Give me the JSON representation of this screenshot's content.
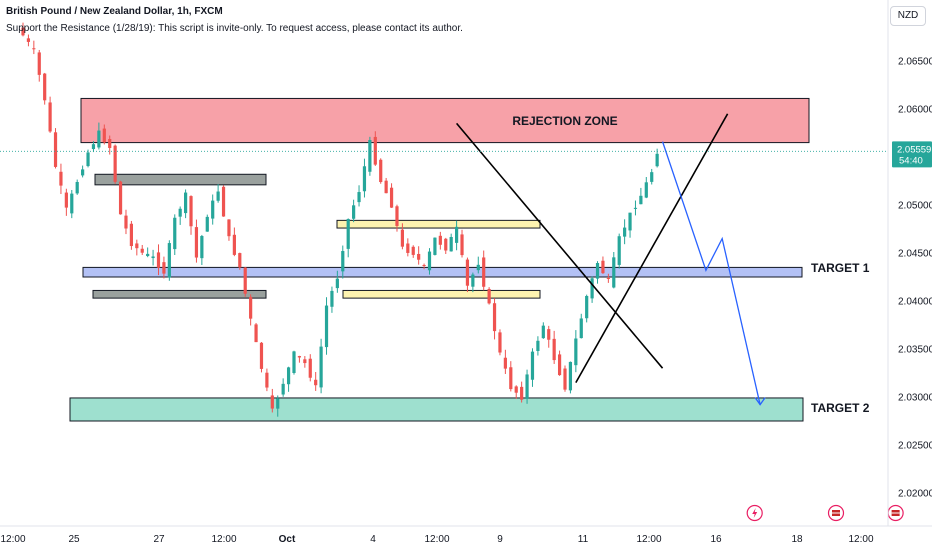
{
  "header": {
    "symbol_line": "British Pound / New Zealand Dollar, 1h, FXCM",
    "indicator_line": "Support the Resistance (1/28/19): This script is invite-only. To request access, please contact its author."
  },
  "currency_badge": "NZD",
  "price_tag": {
    "price": "2.05559",
    "countdown": "54:40",
    "value": 2.05559,
    "color": "#26a69a"
  },
  "colors": {
    "up": "#26a69a",
    "down": "#ef5350",
    "projection": "#2962ff"
  },
  "zones": [
    {
      "label": "REJECTION ZONE",
      "from": 2.0565,
      "to": 2.0611,
      "color": "#f7a1a8"
    },
    {
      "label": "",
      "from": 2.0521,
      "to": 2.0532,
      "color": "#9aa19e"
    },
    {
      "label": "",
      "from": 2.0476,
      "to": 2.0484,
      "color": "#fdf3b0"
    },
    {
      "label": "TARGET 1",
      "from": 2.0425,
      "to": 2.0435,
      "color": "#b3c1f5"
    },
    {
      "label": "",
      "from": 2.0403,
      "to": 2.0411,
      "color": "#fdf3b0"
    },
    {
      "label": "",
      "from": 2.0403,
      "to": 2.0411,
      "color": "#9aa19e"
    },
    {
      "label": "TARGET 2",
      "from": 2.0275,
      "to": 2.0299,
      "color": "#9ee0cf"
    }
  ],
  "labels": {
    "rejection": "REJECTION ZONE",
    "target1": "TARGET 1",
    "target2": "TARGET 2"
  },
  "chart_data": {
    "type": "candlestick",
    "symbol": "GBPNZD",
    "timeframe": "1h",
    "y_ticks": [
      2.065,
      2.06,
      2.055,
      2.05,
      2.045,
      2.04,
      2.035,
      2.03,
      2.025,
      2.02
    ],
    "y_tick_labels": [
      "2.06500",
      "2.06000",
      "2.05500",
      "2.05000",
      "2.04500",
      "2.04000",
      "2.03500",
      "2.03000",
      "2.02500",
      "2.02000"
    ],
    "x_tick_labels": [
      "12:00",
      "25",
      "27",
      "12:00",
      "Oct",
      "4",
      "12:00",
      "9",
      "11",
      "12:00",
      "16",
      "18",
      "12:00"
    ],
    "ylim": [
      2.0175,
      2.0685
    ],
    "price_path": [
      [
        0,
        2.0685
      ],
      [
        3,
        2.066
      ],
      [
        5,
        2.061
      ],
      [
        7,
        2.054
      ],
      [
        9,
        2.0495
      ],
      [
        11,
        2.0525
      ],
      [
        13,
        2.0555
      ],
      [
        15,
        2.0575
      ],
      [
        17,
        2.056
      ],
      [
        19,
        2.049
      ],
      [
        21,
        2.046
      ],
      [
        23,
        2.045
      ],
      [
        25,
        2.0445
      ],
      [
        27,
        2.043
      ],
      [
        29,
        2.0485
      ],
      [
        31,
        2.051
      ],
      [
        33,
        2.0445
      ],
      [
        35,
        2.049
      ],
      [
        37,
        2.0515
      ],
      [
        39,
        2.0465
      ],
      [
        41,
        2.0435
      ],
      [
        43,
        2.038
      ],
      [
        45,
        2.033
      ],
      [
        47,
        2.0285
      ],
      [
        49,
        2.0315
      ],
      [
        51,
        2.0345
      ],
      [
        53,
        2.0335
      ],
      [
        55,
        2.031
      ],
      [
        57,
        2.0395
      ],
      [
        59,
        2.0425
      ],
      [
        61,
        2.0485
      ],
      [
        63,
        2.0515
      ],
      [
        65,
        2.0565
      ],
      [
        67,
        2.0525
      ],
      [
        69,
        2.05
      ],
      [
        71,
        2.0455
      ],
      [
        73,
        2.045
      ],
      [
        75,
        2.0435
      ],
      [
        77,
        2.0465
      ],
      [
        79,
        2.0455
      ],
      [
        81,
        2.0475
      ],
      [
        83,
        2.0415
      ],
      [
        85,
        2.044
      ],
      [
        87,
        2.0395
      ],
      [
        89,
        2.0345
      ],
      [
        91,
        2.031
      ],
      [
        93,
        2.03
      ],
      [
        95,
        2.0345
      ],
      [
        97,
        2.0375
      ],
      [
        99,
        2.034
      ],
      [
        101,
        2.031
      ],
      [
        103,
        2.036
      ],
      [
        105,
        2.0405
      ],
      [
        107,
        2.044
      ],
      [
        109,
        2.042
      ],
      [
        111,
        2.0465
      ],
      [
        113,
        2.049
      ],
      [
        115,
        2.051
      ],
      [
        117,
        2.0535
      ],
      [
        118,
        2.0556
      ]
    ],
    "trendlines": [
      {
        "x1": 80,
        "y1": 2.0585,
        "x2": 118,
        "y2": 2.033
      },
      {
        "x1": 102,
        "y1": 2.0315,
        "x2": 130,
        "y2": 2.0595
      }
    ],
    "projection": [
      [
        118,
        2.0566
      ],
      [
        126,
        2.0432
      ],
      [
        129,
        2.0465
      ],
      [
        136,
        2.0292
      ]
    ],
    "event_icons": [
      {
        "kind": "lightning",
        "x": 135
      },
      {
        "kind": "flag",
        "x": 150
      },
      {
        "kind": "flag",
        "x": 161
      }
    ],
    "grid": false
  }
}
